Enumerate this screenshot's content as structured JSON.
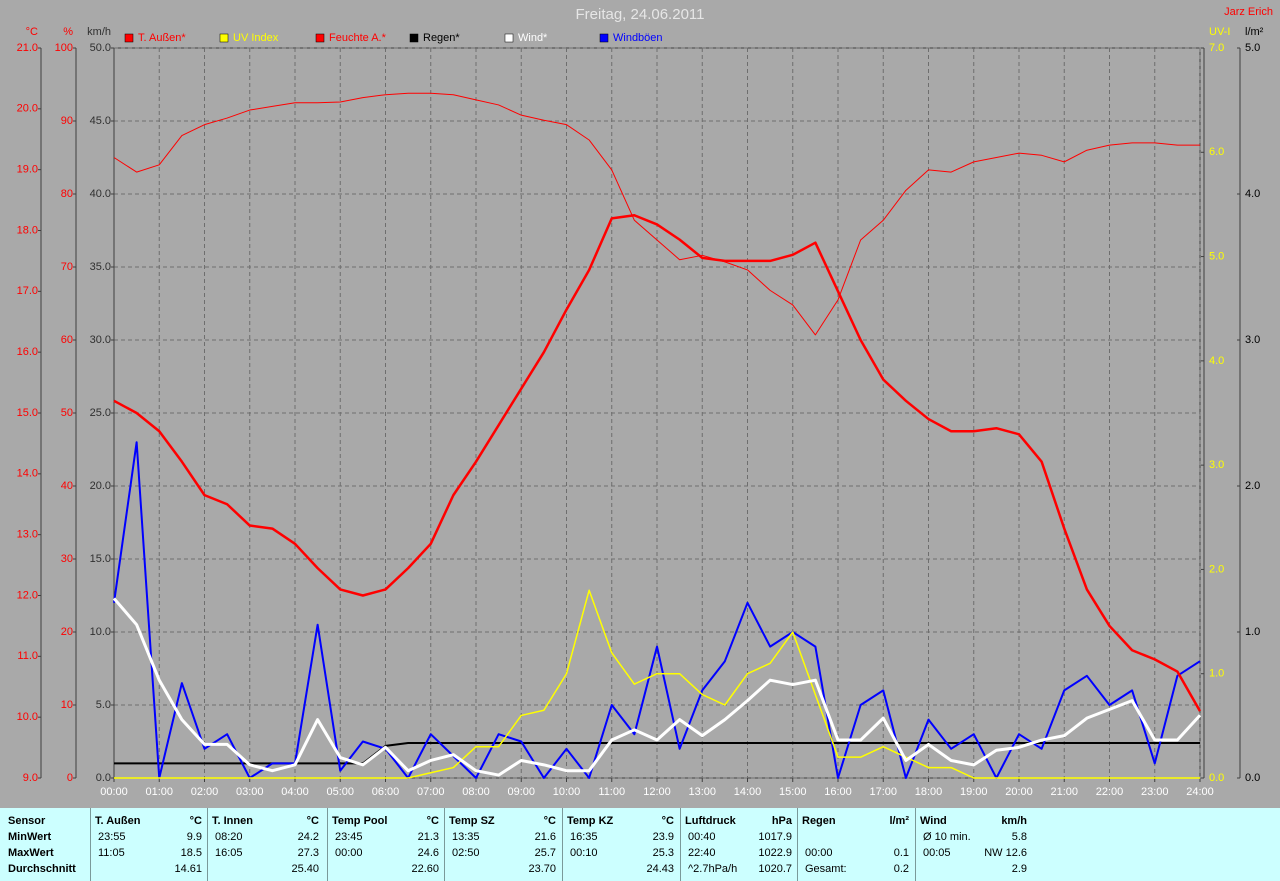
{
  "chart_data": {
    "type": "line",
    "title": "Freitag, 24.06.2011",
    "author": "Jarz Erich",
    "xlim": [
      0,
      24
    ],
    "xticks": [
      {
        "value": 0,
        "label": "00:00"
      },
      {
        "value": 1,
        "label": "01:00"
      },
      {
        "value": 2,
        "label": "02:00"
      },
      {
        "value": 3,
        "label": "03:00"
      },
      {
        "value": 4,
        "label": "04:00"
      },
      {
        "value": 5,
        "label": "05:00"
      },
      {
        "value": 6,
        "label": "06:00"
      },
      {
        "value": 7,
        "label": "07:00"
      },
      {
        "value": 8,
        "label": "08:00"
      },
      {
        "value": 9,
        "label": "09:00"
      },
      {
        "value": 10,
        "label": "10:00"
      },
      {
        "value": 11,
        "label": "11:00"
      },
      {
        "value": 12,
        "label": "12:00"
      },
      {
        "value": 13,
        "label": "13:00"
      },
      {
        "value": 14,
        "label": "14:00"
      },
      {
        "value": 15,
        "label": "15:00"
      },
      {
        "value": 16,
        "label": "16:00"
      },
      {
        "value": 17,
        "label": "17:00"
      },
      {
        "value": 18,
        "label": "18:00"
      },
      {
        "value": 19,
        "label": "19:00"
      },
      {
        "value": 20,
        "label": "20:00"
      },
      {
        "value": 21,
        "label": "21:00"
      },
      {
        "value": 22,
        "label": "22:00"
      },
      {
        "value": 23,
        "label": "23:00"
      },
      {
        "value": 24,
        "label": "24:00"
      }
    ],
    "grid": true,
    "axes": [
      {
        "unit": "°C",
        "side": "left",
        "color": "#ff0000",
        "lim": [
          9,
          21
        ],
        "ticks": [
          {
            "value": 9,
            "label": "9.0"
          },
          {
            "value": 10,
            "label": "10.0"
          },
          {
            "value": 11,
            "label": "11.0"
          },
          {
            "value": 12,
            "label": "12.0"
          },
          {
            "value": 13,
            "label": "13.0"
          },
          {
            "value": 14,
            "label": "14.0"
          },
          {
            "value": 15,
            "label": "15.0"
          },
          {
            "value": 16,
            "label": "16.0"
          },
          {
            "value": 17,
            "label": "17.0"
          },
          {
            "value": 18,
            "label": "18.0"
          },
          {
            "value": 19,
            "label": "19.0"
          },
          {
            "value": 20,
            "label": "20.0"
          },
          {
            "value": 21,
            "label": "21.0"
          }
        ]
      },
      {
        "unit": "%",
        "side": "left",
        "color": "#ff0000",
        "lim": [
          0,
          100
        ],
        "ticks": [
          0,
          10,
          20,
          30,
          40,
          50,
          60,
          70,
          80,
          90,
          100
        ]
      },
      {
        "unit": "km/h",
        "side": "left",
        "color": "#303030",
        "lim": [
          0,
          50
        ],
        "ticks": [
          {
            "value": 0,
            "label": "0.0"
          },
          {
            "value": 5,
            "label": "5.0"
          },
          {
            "value": 10,
            "label": "10.0"
          },
          {
            "value": 15,
            "label": "15.0"
          },
          {
            "value": 20,
            "label": "20.0"
          },
          {
            "value": 25,
            "label": "25.0"
          },
          {
            "value": 30,
            "label": "30.0"
          },
          {
            "value": 35,
            "label": "35.0"
          },
          {
            "value": 40,
            "label": "40.0"
          },
          {
            "value": 45,
            "label": "45.0"
          },
          {
            "value": 50,
            "label": "50.0"
          }
        ]
      },
      {
        "unit": "UV-I",
        "side": "right",
        "color": "#ffff00",
        "lim": [
          0,
          7
        ],
        "ticks": [
          {
            "value": 0,
            "label": "0.0"
          },
          {
            "value": 1,
            "label": "1.0"
          },
          {
            "value": 2,
            "label": "2.0"
          },
          {
            "value": 3,
            "label": "3.0"
          },
          {
            "value": 4,
            "label": "4.0"
          },
          {
            "value": 5,
            "label": "5.0"
          },
          {
            "value": 6,
            "label": "6.0"
          },
          {
            "value": 7,
            "label": "7.0"
          }
        ]
      },
      {
        "unit": "l/m²",
        "side": "right",
        "color": "#000000",
        "lim": [
          0,
          5
        ],
        "ticks": [
          {
            "value": 0,
            "label": "0.0"
          },
          {
            "value": 1,
            "label": "1.0"
          },
          {
            "value": 2,
            "label": "2.0"
          },
          {
            "value": 3,
            "label": "3.0"
          },
          {
            "value": 4,
            "label": "4.0"
          },
          {
            "value": 5,
            "label": "5.0"
          }
        ]
      }
    ],
    "x": [
      0,
      0.5,
      1,
      1.5,
      2,
      2.5,
      3,
      3.5,
      4,
      4.5,
      5,
      5.5,
      6,
      6.5,
      7,
      7.5,
      8,
      8.5,
      9,
      9.5,
      10,
      10.5,
      11,
      11.5,
      12,
      12.5,
      13,
      13.5,
      14,
      14.5,
      15,
      15.5,
      16,
      16.5,
      17,
      17.5,
      18,
      18.5,
      19,
      19.5,
      20,
      20.5,
      21,
      21.5,
      22,
      22.5,
      23,
      23.5,
      24
    ],
    "series": [
      {
        "name": "T. Außen*",
        "color": "#ff0000",
        "axis": 0,
        "values": [
          15.2,
          15.0,
          14.7,
          14.2,
          13.65,
          13.5,
          13.15,
          13.1,
          12.85,
          12.45,
          12.1,
          12.0,
          12.1,
          12.45,
          12.85,
          13.65,
          14.2,
          14.8,
          15.4,
          16.0,
          16.7,
          17.35,
          18.2,
          18.25,
          18.1,
          17.85,
          17.55,
          17.5,
          17.5,
          17.5,
          17.6,
          17.8,
          17.0,
          16.2,
          15.55,
          15.2,
          14.9,
          14.7,
          14.7,
          14.75,
          14.65,
          14.2,
          13.1,
          12.1,
          11.5,
          11.1,
          10.95,
          10.75,
          10.1
        ]
      },
      {
        "name": "UV Index",
        "color": "#ffff00",
        "axis": 3,
        "values": [
          0,
          0,
          0,
          0,
          0,
          0,
          0,
          0,
          0,
          0,
          0,
          0,
          0,
          0,
          0.05,
          0.1,
          0.3,
          0.3,
          0.6,
          0.65,
          1.0,
          1.8,
          1.2,
          0.9,
          1.0,
          1.0,
          0.8,
          0.7,
          1.0,
          1.1,
          1.4,
          0.8,
          0.2,
          0.2,
          0.3,
          0.2,
          0.1,
          0.1,
          0,
          0,
          0,
          0,
          0,
          0,
          0,
          0,
          0,
          0,
          0
        ]
      },
      {
        "name": "Feuchte A.*",
        "color": "#ff0000",
        "axis": 1,
        "values": [
          85,
          83,
          84,
          88,
          89.5,
          90.4,
          91.5,
          92,
          92.5,
          92.5,
          92.6,
          93.2,
          93.6,
          93.8,
          93.8,
          93.6,
          92.9,
          92.2,
          90.8,
          90.1,
          89.5,
          87.4,
          83.3,
          76.4,
          73.7,
          71,
          71.6,
          70.7,
          69.6,
          66.8,
          64.8,
          60.7,
          65.5,
          73.7,
          76.4,
          80.5,
          83.3,
          83,
          84.4,
          85,
          85.6,
          85.3,
          84.4,
          86,
          86.7,
          87,
          87,
          86.7,
          86.7
        ]
      },
      {
        "name": "Regen*",
        "color": "#000000",
        "axis": 4,
        "values": [
          0.1,
          0.1,
          0.1,
          0.1,
          0.1,
          0.1,
          0.1,
          0.1,
          0.1,
          0.1,
          0.1,
          0.1,
          0.22,
          0.24,
          0.24,
          0.24,
          0.24,
          0.24,
          0.24,
          0.24,
          0.24,
          0.24,
          0.24,
          0.24,
          0.24,
          0.24,
          0.24,
          0.24,
          0.24,
          0.24,
          0.24,
          0.24,
          0.24,
          0.24,
          0.24,
          0.24,
          0.24,
          0.24,
          0.24,
          0.24,
          0.24,
          0.24,
          0.24,
          0.24,
          0.24,
          0.24,
          0.24,
          0.24,
          0.24
        ]
      },
      {
        "name": "Wind*",
        "color": "#ffffff",
        "axis": 2,
        "values": [
          12.3,
          10.5,
          6.7,
          4.0,
          2.3,
          2.3,
          0.9,
          0.5,
          0.9,
          4.0,
          1.4,
          0.9,
          2.1,
          0.5,
          1.2,
          1.6,
          0.5,
          0.2,
          1.2,
          0.9,
          0.5,
          0.5,
          2.6,
          3.3,
          2.6,
          4.0,
          2.9,
          4.0,
          5.3,
          6.7,
          6.4,
          6.7,
          2.6,
          2.6,
          4.1,
          1.2,
          2.3,
          1.2,
          0.9,
          1.9,
          2.1,
          2.6,
          2.9,
          4.1,
          4.7,
          5.3,
          2.6,
          2.6,
          4.3
        ]
      },
      {
        "name": "Windböen",
        "color": "#0000ff",
        "axis": 2,
        "values": [
          12,
          23,
          0,
          6.5,
          2,
          3,
          0,
          1,
          1,
          10.5,
          0.5,
          2.5,
          2,
          0,
          3,
          1.5,
          0,
          3,
          2.5,
          0,
          2,
          0,
          5,
          3,
          9,
          2,
          6,
          8,
          12,
          9,
          10,
          9,
          0,
          5,
          6,
          0,
          4,
          2,
          3,
          0,
          3,
          2,
          6,
          7,
          5,
          6,
          1,
          7,
          8
        ]
      }
    ]
  },
  "table": {
    "row_labels": [
      "Sensor",
      "MinWert",
      "MaxWert",
      "Durchschnitt"
    ],
    "sections": [
      {
        "name": "T. Außen",
        "unit": "°C",
        "min": {
          "label": "23:55",
          "value": "9.9"
        },
        "max": {
          "label": "11:05",
          "value": "18.5"
        },
        "avg": {
          "value": "14.61"
        }
      },
      {
        "name": "T. Innen",
        "unit": "°C",
        "min": {
          "label": "08:20",
          "value": "24.2"
        },
        "max": {
          "label": "16:05",
          "value": "27.3"
        },
        "avg": {
          "value": "25.40"
        }
      },
      {
        "name": "Temp Pool",
        "unit": "°C",
        "min": {
          "label": "23:45",
          "value": "21.3"
        },
        "max": {
          "label": "00:00",
          "value": "24.6"
        },
        "avg": {
          "value": "22.60"
        }
      },
      {
        "name": "Temp SZ",
        "unit": "°C",
        "min": {
          "label": "13:35",
          "value": "21.6"
        },
        "max": {
          "label": "02:50",
          "value": "25.7"
        },
        "avg": {
          "value": "23.70"
        }
      },
      {
        "name": "Temp KZ",
        "unit": "°C",
        "min": {
          "label": "16:35",
          "value": "23.9"
        },
        "max": {
          "label": "00:10",
          "value": "25.3"
        },
        "avg": {
          "value": "24.43"
        }
      },
      {
        "name": "Luftdruck",
        "unit": "hPa",
        "min": {
          "label": "00:40",
          "value": "1017.9"
        },
        "max": {
          "label": "22:40",
          "value": "1022.9"
        },
        "avg": {
          "label": "^2.7hPa/h",
          "value": "1020.7"
        }
      },
      {
        "name": "Regen",
        "unit": "l/m²",
        "max": {
          "label": "00:00",
          "value": "0.1"
        },
        "avg": {
          "label": "Gesamt:",
          "value": "0.2"
        }
      },
      {
        "name": "Wind",
        "unit": "km/h",
        "min": {
          "label": "Ø 10 min.",
          "value": "5.8"
        },
        "max": {
          "label": "00:05",
          "value": "NW 12.6"
        },
        "avg": {
          "value": "2.9"
        }
      }
    ]
  }
}
